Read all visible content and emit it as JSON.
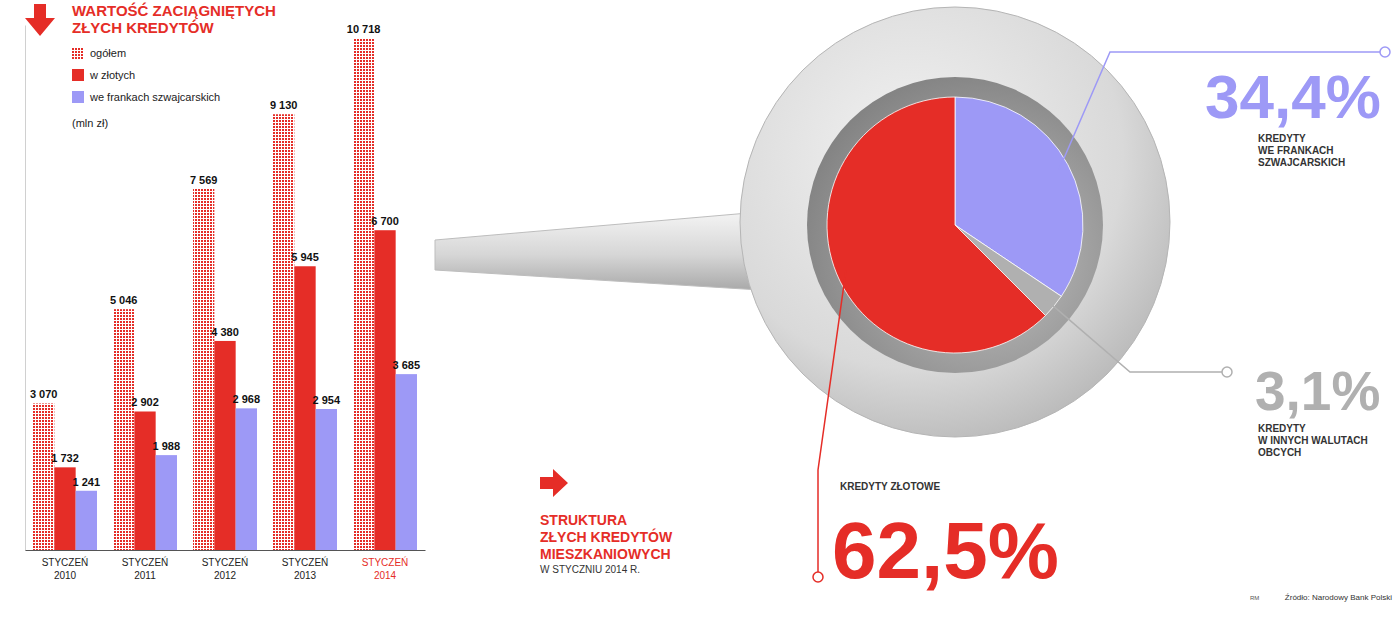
{
  "chart_data": [
    {
      "type": "bar",
      "title": "WARTOŚĆ ZACIĄGNIĘTYCH ZŁYCH KREDYTÓW",
      "ylabel": "(mln zł)",
      "categories": [
        "STYCZEŃ 2010",
        "STYCZEŃ 2011",
        "STYCZEŃ 2012",
        "STYCZEŃ 2013",
        "STYCZEŃ 2014"
      ],
      "series": [
        {
          "name": "ogółem",
          "color": "#e52d27",
          "values": [
            3070,
            5046,
            7569,
            9130,
            10718
          ],
          "value_labels": [
            "3 070",
            "5 046",
            "7 569",
            "9 130",
            "10 718"
          ]
        },
        {
          "name": "w złotych",
          "color": "#e52d27",
          "values": [
            1732,
            2902,
            4380,
            5945,
            6700
          ],
          "value_labels": [
            "1 732",
            "2 902",
            "4 380",
            "5 945",
            "6 700"
          ]
        },
        {
          "name": "we frankach szwajcarskich",
          "color": "#9d99f6",
          "values": [
            1241,
            1988,
            2968,
            2954,
            3685
          ],
          "value_labels": [
            "1 241",
            "1 988",
            "2 968",
            "2 954",
            "3 685"
          ]
        }
      ],
      "ylim": [
        0,
        11000
      ],
      "yticks": [],
      "tick_labels": "x",
      "legend": "top-left",
      "data_labels": true
    },
    {
      "type": "pie",
      "title": "STRUKTURA ZŁYCH KREDYTÓW MIESZKANIOWYCH",
      "subtitle": "W STYCZNIU 2014 R.",
      "categories": [
        "KREDYTY WE FRANKACH SZWAJCARSKICH",
        "KREDYTY W INNYCH WALUTACH OBCYCH",
        "KREDYTY ZŁOTOWE"
      ],
      "values": [
        34.4,
        3.1,
        62.5
      ],
      "value_labels": [
        "34,4%",
        "3,1%",
        "62,5%"
      ],
      "colors": [
        "#9d99f6",
        "#b0b0b0",
        "#e52d27"
      ],
      "data_labels": true,
      "source": "Źródło: Narodowy Bank Polski",
      "credit": "RM"
    }
  ]
}
